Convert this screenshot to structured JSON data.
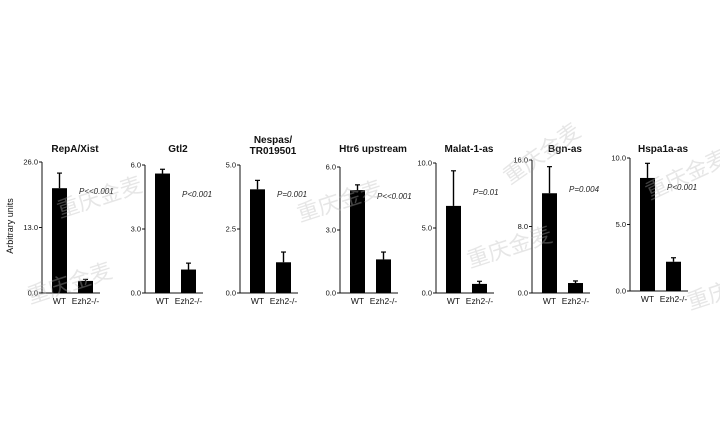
{
  "ylabel": "Arbitrary units",
  "watermark": "重庆金麦",
  "chart_data": [
    {
      "type": "bar",
      "title": [
        "RepA/Xist"
      ],
      "categories": [
        "WT",
        "Ezh2-/-"
      ],
      "values": [
        20.8,
        2.4
      ],
      "errors": [
        3.0,
        0.3
      ],
      "ylim": [
        0,
        26.0
      ],
      "yticks": [
        "26.0",
        "13.0",
        "0.0"
      ],
      "pvalue": "P<<0.001"
    },
    {
      "type": "bar",
      "title": [
        "Gtl2"
      ],
      "categories": [
        "WT",
        "Ezh2-/-"
      ],
      "values": [
        5.6,
        1.1
      ],
      "errors": [
        0.2,
        0.3
      ],
      "ylim": [
        0,
        6.0
      ],
      "yticks": [
        "6.0",
        "3.0",
        "0.0"
      ],
      "pvalue": "P<0.001"
    },
    {
      "type": "bar",
      "title": [
        "Nespas/",
        "TR019501"
      ],
      "categories": [
        "WT",
        "Ezh2-/-"
      ],
      "values": [
        4.05,
        1.2
      ],
      "errors": [
        0.35,
        0.4
      ],
      "ylim": [
        0,
        5.0
      ],
      "yticks": [
        "5.0",
        "2.5",
        "0.0"
      ],
      "pvalue": "P=0.001"
    },
    {
      "type": "bar",
      "title": [
        "Htr6 upstream"
      ],
      "categories": [
        "WT",
        "Ezh2-/-"
      ],
      "values": [
        4.9,
        1.6
      ],
      "errors": [
        0.25,
        0.35
      ],
      "ylim": [
        0,
        6.0
      ],
      "yticks": [
        "6.0",
        "3.0",
        "0.0"
      ],
      "pvalue": "P<<0.001"
    },
    {
      "type": "bar",
      "title": [
        "Malat-1-as"
      ],
      "categories": [
        "WT",
        "Ezh2-/-"
      ],
      "values": [
        6.7,
        0.7
      ],
      "errors": [
        2.7,
        0.2
      ],
      "ylim": [
        0,
        10.0
      ],
      "yticks": [
        "10.0",
        "5.0",
        "0.0"
      ],
      "pvalue": "P=0.01"
    },
    {
      "type": "bar",
      "title": [
        "Bgn-as"
      ],
      "categories": [
        "WT",
        "Ezh2-/-"
      ],
      "values": [
        12.0,
        1.2
      ],
      "errors": [
        3.2,
        0.25
      ],
      "ylim": [
        0,
        16.0
      ],
      "yticks": [
        "16.0",
        "8.0",
        "0.0"
      ],
      "pvalue": "P=0.004"
    },
    {
      "type": "bar",
      "title": [
        "Hspa1a-as"
      ],
      "categories": [
        "WT",
        "Ezh2-/-"
      ],
      "values": [
        8.5,
        2.2
      ],
      "errors": [
        1.1,
        0.3
      ],
      "ylim": [
        0,
        10.0
      ],
      "yticks": [
        "10.0",
        "5.0",
        "0.0"
      ],
      "pvalue": "P<0.001"
    }
  ]
}
